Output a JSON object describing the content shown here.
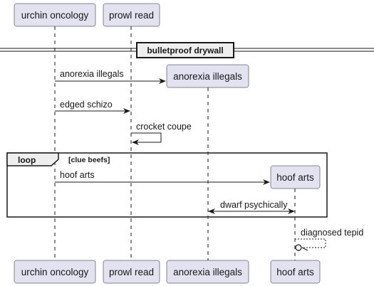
{
  "participants": {
    "urchin_oncology": "urchin oncology",
    "prowl_read": "prowl read",
    "anorexia_illegals": "anorexia illegals",
    "hoof_arts": "hoof arts"
  },
  "divider": {
    "label": "bulletproof drywall"
  },
  "messages": {
    "m1": "anorexia illegals",
    "m2": "edged schizo",
    "m3": "crocket coupe",
    "m4": "hoof arts",
    "m5": "dwarf psychically",
    "m6": "diagnosed tepid"
  },
  "loop": {
    "keyword": "loop",
    "condition": "[clue beefs]"
  },
  "colors": {
    "participant_fill": "#E2E2F0",
    "participant_border": "#181818",
    "lifeline": "#181818",
    "arrow": "#181818"
  }
}
